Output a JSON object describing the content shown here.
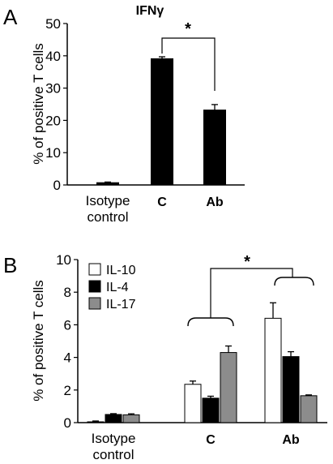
{
  "chart_data": [
    {
      "type": "bar",
      "panel_label": "A",
      "title": "IFNγ",
      "ylabel": "% of positive T cells",
      "ylim": [
        0,
        50
      ],
      "yticks": [
        "0",
        "10",
        "20",
        "30",
        "40",
        "50"
      ],
      "categories": [
        {
          "line1": "Isotype",
          "line2": "control",
          "bold": false
        },
        {
          "line1": "C",
          "line2": "",
          "bold": true
        },
        {
          "line1": "Ab",
          "line2": "",
          "bold": true
        }
      ],
      "values": [
        0.7,
        39.1,
        23.2
      ],
      "errors": [
        0.2,
        0.6,
        1.7
      ],
      "color": "#000000",
      "annotation": "*"
    },
    {
      "type": "bar",
      "panel_label": "B",
      "ylabel": "% of positive T cells",
      "ylim": [
        0,
        10
      ],
      "yticks": [
        "0",
        "2",
        "4",
        "6",
        "8",
        "10"
      ],
      "categories": [
        {
          "line1": "Isotype",
          "line2": "control",
          "bold": false
        },
        {
          "line1": "C",
          "line2": "",
          "bold": true
        },
        {
          "line1": "Ab",
          "line2": "",
          "bold": true
        }
      ],
      "series": [
        {
          "name": "IL-10",
          "color": "#ffffff",
          "values": [
            0.05,
            2.35,
            6.4
          ],
          "errors": [
            0.05,
            0.2,
            0.95
          ]
        },
        {
          "name": "IL-4",
          "color": "#000000",
          "values": [
            0.5,
            1.5,
            4.05
          ],
          "errors": [
            0.05,
            0.12,
            0.3
          ]
        },
        {
          "name": "IL-17",
          "color": "#8c8c8c",
          "values": [
            0.48,
            4.3,
            1.65
          ],
          "errors": [
            0.06,
            0.4,
            0.05
          ]
        }
      ],
      "legend_position": "top-left",
      "annotation": "*"
    }
  ]
}
